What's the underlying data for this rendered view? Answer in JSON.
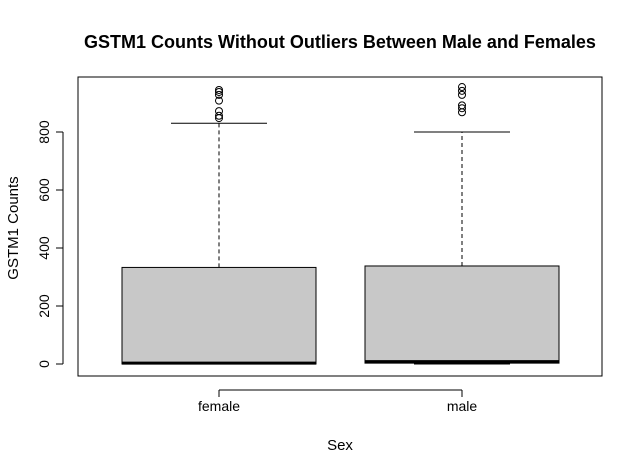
{
  "chart_data": {
    "type": "boxplot",
    "title": "GSTM1 Counts Without Outliers Between Male and Females",
    "xlabel": "Sex",
    "ylabel": "GSTM1 Counts",
    "categories": [
      "female",
      "male"
    ],
    "ylim": [
      -35,
      1000
    ],
    "y_ticks": [
      0,
      200,
      400,
      600,
      800
    ],
    "grid": false,
    "box_fill": "#c8c8c8",
    "boxes": [
      {
        "category": "female",
        "whisker_low": 0,
        "q1": 0,
        "median": 3,
        "q3": 333,
        "whisker_high": 830,
        "outliers": [
          848,
          856,
          872,
          908,
          928,
          938,
          945
        ]
      },
      {
        "category": "male",
        "whisker_low": 0,
        "q1": 3,
        "median": 8,
        "q3": 338,
        "whisker_high": 800,
        "outliers": [
          868,
          882,
          892,
          928,
          942,
          955
        ]
      }
    ]
  }
}
